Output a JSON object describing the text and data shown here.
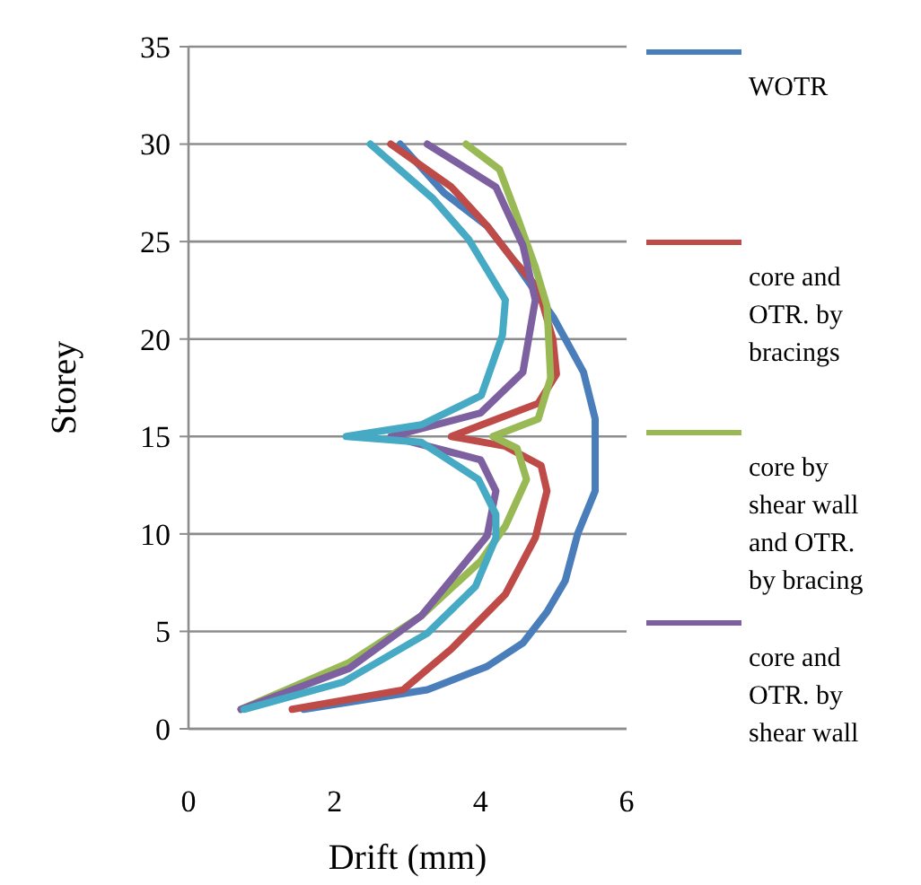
{
  "chart_data": {
    "type": "line",
    "xlabel": "Drift (mm)",
    "ylabel": "Storey",
    "xlim": [
      0,
      6
    ],
    "xticks": [
      0,
      2,
      4,
      6
    ],
    "ylim": [
      0,
      35
    ],
    "yticks": [
      0,
      5,
      10,
      15,
      20,
      25,
      30,
      35
    ],
    "grid": "y",
    "legend": "right",
    "marker": "none",
    "line_style": "solid",
    "series": [
      {
        "name": "WOTR",
        "color": "#4a7ebb",
        "x": [
          1.58,
          3.27,
          4.09,
          4.58,
          4.91,
          5.16,
          5.33,
          5.57,
          5.57,
          5.41,
          5.0,
          4.83,
          4.42,
          4.09,
          3.5,
          2.9
        ],
        "values": [
          1,
          2,
          3.2,
          4.4,
          6,
          7.6,
          10,
          12.2,
          15.9,
          18.3,
          21.1,
          22,
          24.2,
          25.8,
          27.5,
          30
        ]
      },
      {
        "name": "core and OTR. by bracings",
        "color": "#be4b48",
        "x": [
          1.42,
          2.94,
          3.6,
          4.34,
          4.75,
          4.91,
          4.83,
          4.34,
          3.6,
          4.09,
          4.79,
          5.04,
          4.99,
          4.79,
          4.42,
          4.09,
          3.6,
          2.77
        ],
        "values": [
          1,
          2,
          4.1,
          6.9,
          9.8,
          12.2,
          13.5,
          14.5,
          15,
          15.7,
          16.7,
          18.2,
          20,
          22.6,
          24.2,
          25.8,
          27.8,
          30
        ]
      },
      {
        "name": "core by shear wall and OTR. by bracing",
        "color": "#98b954",
        "x": [
          0.72,
          2.2,
          3.19,
          4.0,
          4.34,
          4.63,
          4.5,
          4.17,
          4.79,
          4.96,
          4.91,
          4.75,
          4.5,
          4.26,
          3.8
        ],
        "values": [
          1,
          3.4,
          5.8,
          8.6,
          10.4,
          12.8,
          14.4,
          15,
          15.9,
          18,
          21.7,
          23.7,
          26.3,
          28.7,
          30
        ]
      },
      {
        "name": "core and OTR. by shear wall",
        "color": "#7d60a0",
        "x": [
          0.72,
          2.2,
          3.19,
          4.09,
          4.21,
          4.0,
          2.77,
          4.0,
          4.58,
          4.75,
          4.58,
          4.21,
          3.27
        ],
        "values": [
          1,
          3.1,
          5.8,
          9.9,
          12.2,
          13.8,
          15,
          16.2,
          18.3,
          22,
          24.8,
          27.8,
          30
        ]
      },
      {
        "color": "#46aac5",
        "x": [
          0.76,
          2.12,
          3.27,
          3.93,
          4.21,
          4.21,
          3.97,
          3.19,
          2.16,
          3.19,
          4.01,
          4.3,
          4.34,
          3.84,
          3.35,
          2.49
        ],
        "values": [
          1,
          2.4,
          4.9,
          7.3,
          9.8,
          11,
          12.8,
          14.7,
          15,
          15.6,
          17.1,
          20.2,
          22,
          25.1,
          27.2,
          30
        ]
      }
    ]
  }
}
